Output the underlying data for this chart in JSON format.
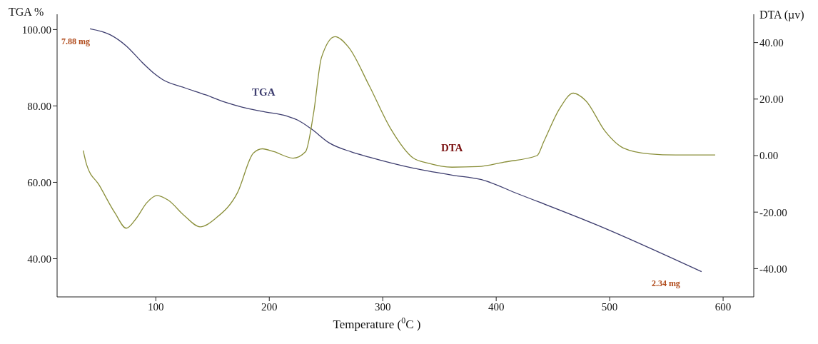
{
  "chart_data": {
    "type": "line",
    "xlabel": "Temperature ($^{0}$C )",
    "ylabel": "TGA %",
    "y2label": "DTA (µv)",
    "xlim": [
      13,
      627
    ],
    "xticks": [
      100,
      200,
      300,
      400,
      500,
      600
    ],
    "ylim": [
      30,
      104
    ],
    "yticks": [
      {
        "value": 40,
        "label": "40.00"
      },
      {
        "value": 60,
        "label": "60.00"
      },
      {
        "value": 80,
        "label": "80.00"
      },
      {
        "value": 100,
        "label": "100.00"
      }
    ],
    "y2lim": [
      -50,
      50
    ],
    "y2ticks": [
      {
        "value": -40,
        "label": "-40.00"
      },
      {
        "value": -20,
        "label": "-20.00"
      },
      {
        "value": 0,
        "label": "0.00"
      },
      {
        "value": 20,
        "label": "20.00"
      },
      {
        "value": 40,
        "label": "40.00"
      }
    ],
    "series": [
      {
        "name": "TGA",
        "color": "#3c3c6e",
        "x": [
          42,
          60,
          74,
          88,
          99,
          106,
          125,
          144,
          162,
          176,
          195,
          216,
          225,
          237,
          253,
          272,
          288,
          327,
          361,
          387,
          419,
          489,
          581
        ],
        "values": [
          100.2,
          98.6,
          95.7,
          91.4,
          88.4,
          86.9,
          84.8,
          82.9,
          80.9,
          79.7,
          78.5,
          77.3,
          76.3,
          74.0,
          70.3,
          68.0,
          66.6,
          63.7,
          61.9,
          60.7,
          57.0,
          48.8,
          36.6
        ]
      },
      {
        "name": "DTA",
        "color": "#8a8f3a",
        "axis": "y2",
        "x": [
          36,
          39,
          50,
          64,
          74,
          83,
          92,
          101,
          111,
          125,
          139,
          153,
          172,
          186,
          194,
          204,
          221,
          232,
          239,
          246,
          258,
          270,
          288,
          307,
          327,
          340,
          361,
          384,
          407,
          436,
          442,
          456,
          468,
          479,
          496,
          512,
          535,
          558,
          593
        ],
        "values": [
          1.8,
          -3.2,
          -10.4,
          -20.3,
          -25.7,
          -22.1,
          -16.7,
          -14.1,
          -15.8,
          -21.2,
          -25.2,
          -22.1,
          -13.1,
          0.9,
          2.4,
          1.4,
          -0.9,
          1.4,
          14.9,
          34.7,
          42.1,
          38.3,
          24.8,
          9.5,
          -0.9,
          -2.7,
          -4.1,
          -3.9,
          -2.3,
          0,
          5.0,
          16.7,
          22.1,
          19.4,
          8.6,
          2.7,
          0.6,
          0.2,
          0.2
        ]
      }
    ],
    "annotations": [
      {
        "text": "7.88 mg",
        "x": 42,
        "y": 100.2
      },
      {
        "text": "2.34 mg",
        "x": 581,
        "y": 36.6
      }
    ],
    "grid": false,
    "legend": false,
    "marker": "none",
    "line_style": "solid"
  }
}
